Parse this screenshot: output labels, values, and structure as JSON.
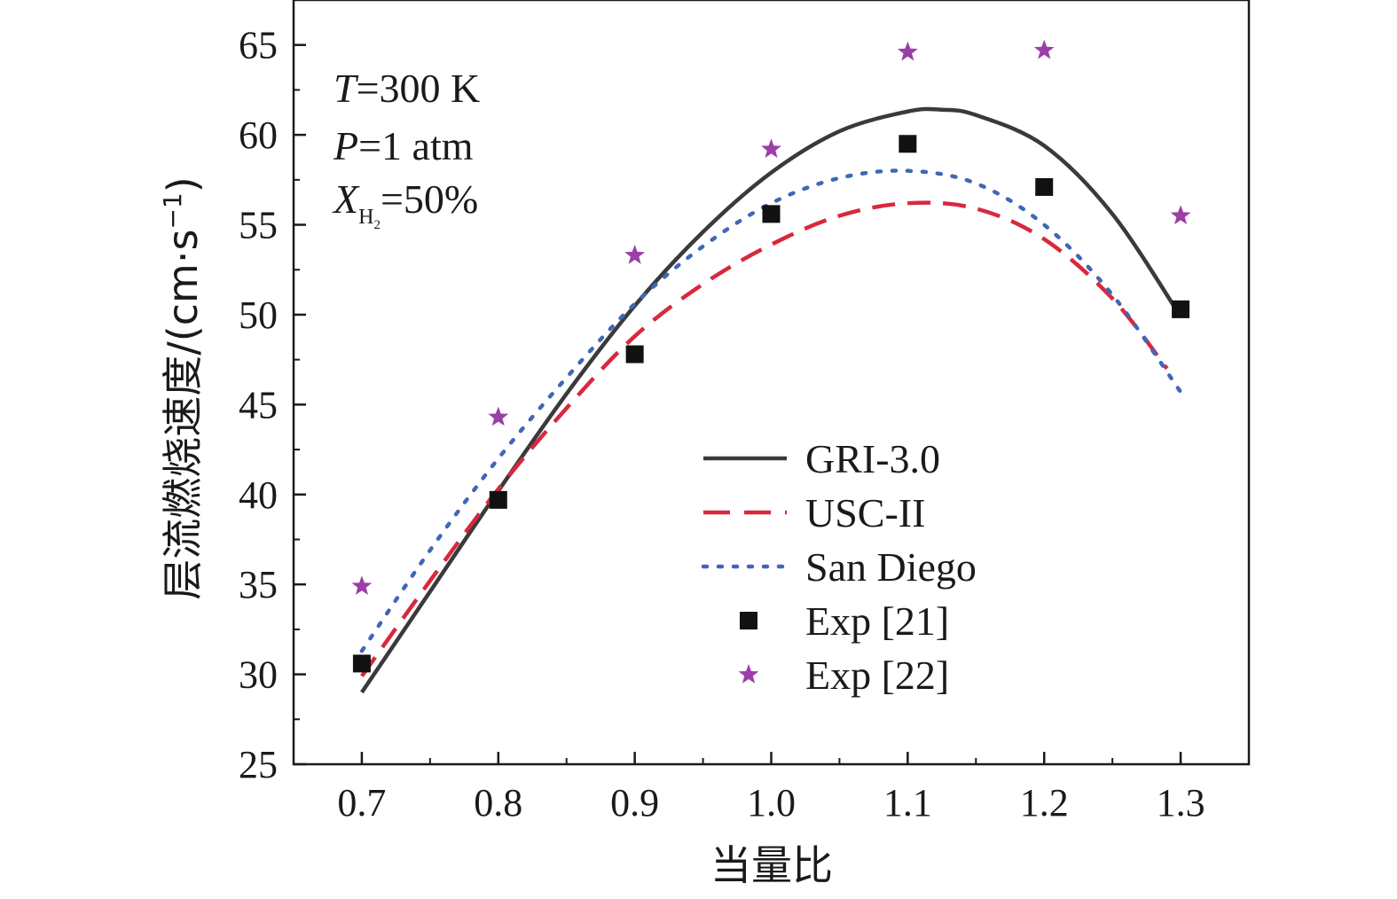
{
  "chart_data": {
    "type": "line",
    "xlabel": "当量比",
    "ylabel": "层流燃烧速度/(cm·s",
    "ylabel_sup": "−1",
    "ylabel_close": ")",
    "xlim": [
      0.65,
      1.35
    ],
    "ylim": [
      25,
      67.5
    ],
    "xticks": [
      "0.7",
      "0.8",
      "0.9",
      "1.0",
      "1.1",
      "1.2",
      "1.3"
    ],
    "yticks": [
      "25",
      "30",
      "35",
      "40",
      "45",
      "50",
      "55",
      "60",
      "65"
    ],
    "annotations": {
      "line1_var": "T",
      "line1_rest": "=300 K",
      "line2_var": "P",
      "line2_rest": "=1 atm",
      "line3_var": "X",
      "line3_sub": "H",
      "line3_subsub": "2",
      "line3_rest": "=50%"
    },
    "legend_position": "bottom-right",
    "grid": false,
    "series": [
      {
        "name": "GRI-3.0",
        "style": "solid",
        "color": "#3a3a3c",
        "x": [
          0.7,
          0.75,
          0.8,
          0.85,
          0.9,
          0.95,
          1.0,
          1.05,
          1.1,
          1.125,
          1.15,
          1.2,
          1.25,
          1.3
        ],
        "y": [
          29.0,
          34.6,
          40.2,
          45.6,
          50.5,
          54.6,
          57.9,
          60.2,
          61.3,
          61.4,
          61.1,
          59.4,
          55.6,
          49.9
        ]
      },
      {
        "name": "USC-II",
        "style": "dashed",
        "color": "#d8283e",
        "x": [
          0.7,
          0.75,
          0.8,
          0.85,
          0.9,
          0.95,
          1.0,
          1.05,
          1.1,
          1.15,
          1.2,
          1.25,
          1.29
        ],
        "y": [
          29.9,
          35.2,
          40.3,
          44.8,
          48.8,
          51.7,
          53.9,
          55.5,
          56.2,
          55.9,
          54.2,
          50.9,
          47.0
        ]
      },
      {
        "name": "San Diego",
        "style": "dotted",
        "color": "#3f67b6",
        "x": [
          0.7,
          0.75,
          0.8,
          0.85,
          0.9,
          0.95,
          1.0,
          1.05,
          1.1,
          1.15,
          1.2,
          1.25,
          1.3
        ],
        "y": [
          31.3,
          36.9,
          42.0,
          46.5,
          50.6,
          53.8,
          56.2,
          57.6,
          58.0,
          57.3,
          55.0,
          51.1,
          45.7
        ]
      },
      {
        "name": "Exp [21]",
        "style": "square",
        "color": "#111111",
        "x": [
          0.7,
          0.8,
          0.9,
          1.0,
          1.1,
          1.2,
          1.3
        ],
        "y": [
          30.6,
          39.7,
          47.8,
          55.6,
          59.5,
          57.1,
          50.3
        ]
      },
      {
        "name": "Exp [22]",
        "style": "star",
        "color": "#9b3fa8",
        "x": [
          0.7,
          0.8,
          0.9,
          1.0,
          1.1,
          1.2,
          1.3
        ],
        "y": [
          34.9,
          44.3,
          53.3,
          59.2,
          64.6,
          64.7,
          55.5
        ]
      }
    ]
  }
}
